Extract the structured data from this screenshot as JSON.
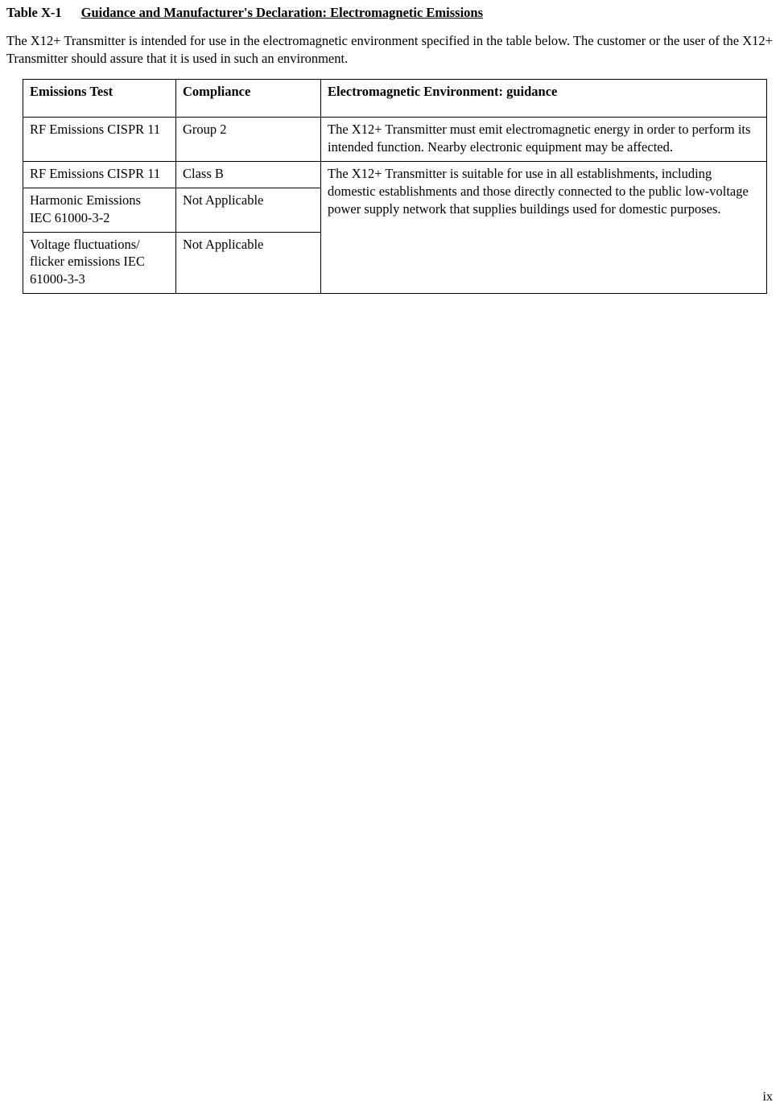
{
  "title": {
    "number": "Table X-1",
    "text": "Guidance and Manufacturer's Declaration: Electromagnetic Emissions"
  },
  "intro": "The X12+ Transmitter is intended for use in the electromagnetic environment specified in the table below.  The customer or the user of the X12+ Transmitter should assure that it is used in such an environment.",
  "headers": {
    "col1": "Emissions Test",
    "col2": "Compliance",
    "col3": "Electromagnetic Environment: guidance"
  },
  "rows": {
    "r1": {
      "test": "RF Emissions CISPR 11",
      "compliance": "Group 2",
      "env": "The X12+ Transmitter must emit electromagnetic energy in order to perform its intended function. Nearby electronic equipment may be affected."
    },
    "r2": {
      "test": "RF Emissions CISPR 11",
      "compliance": "Class B"
    },
    "r3": {
      "test": "Harmonic Emissions",
      "test_std": "IEC 61000-3-2",
      "compliance": "Not Applicable"
    },
    "r4": {
      "test": "Voltage fluctuations/ flicker emissions IEC 61000-3-3",
      "compliance": "Not Applicable"
    },
    "env_merged": "The X12+ Transmitter is suitable for use in all establishments, including domestic establishments and those directly connected to the public low-voltage power supply network that supplies buildings used for domestic purposes."
  },
  "page_number": "ix"
}
